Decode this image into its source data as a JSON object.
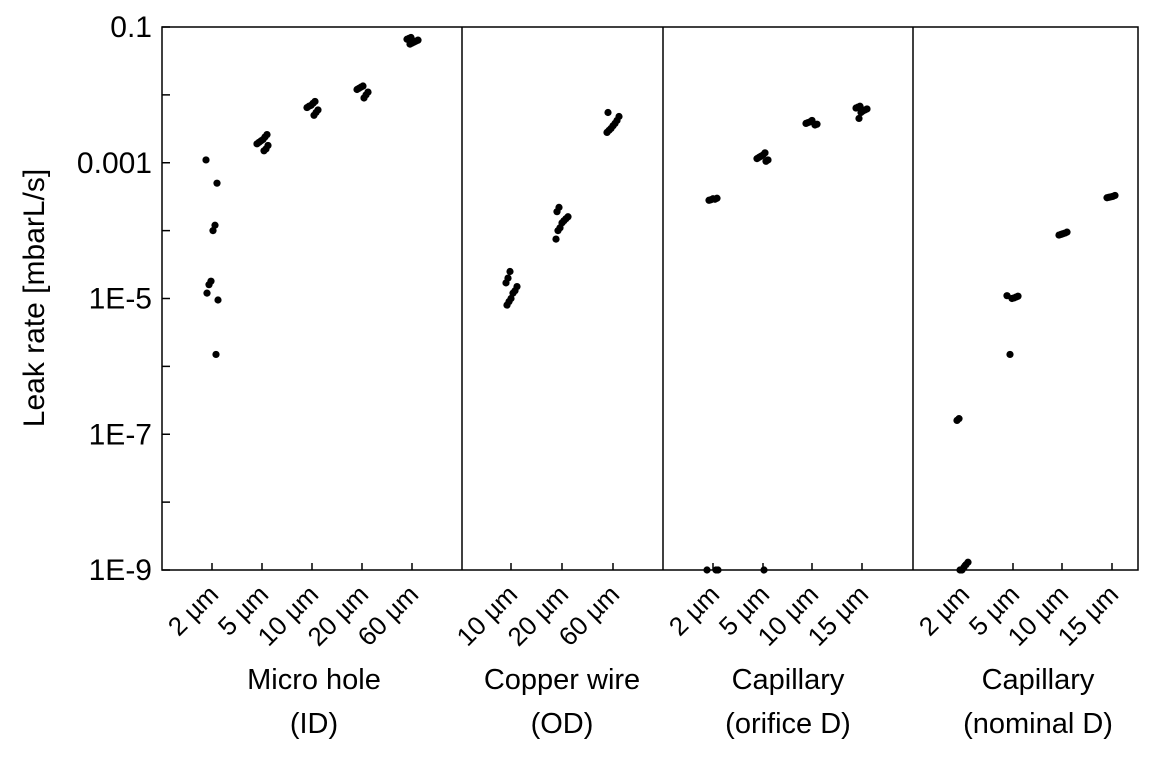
{
  "chart_data": {
    "type": "scatter",
    "title": "",
    "ylabel": "Leak rate [mbarL/s]",
    "yscale": "log",
    "ylim": [
      1e-09,
      0.1
    ],
    "yticks": [
      {
        "value": 1e-09,
        "label": "1E-9"
      },
      {
        "value": 1e-07,
        "label": "1E-7"
      },
      {
        "value": 1e-05,
        "label": "1E-5"
      },
      {
        "value": 0.001,
        "label": "0.001"
      },
      {
        "value": 0.1,
        "label": "0.1"
      }
    ],
    "grid": false,
    "legend": "none",
    "marker_color": "#000000",
    "groups": [
      {
        "label_line1": "Micro hole",
        "label_line2": "(ID)",
        "categories": [
          {
            "label": "2 µm",
            "values": [
              0.0011,
              0.0005,
              0.00012,
              0.0001,
              1.8e-05,
              1.6e-05,
              1.2e-05,
              9.5e-06,
              1.5e-06
            ]
          },
          {
            "label": "5 µm",
            "values": [
              0.0026,
              0.0024,
              0.0022,
              0.0021,
              0.002,
              0.0019,
              0.0018,
              0.0016,
              0.0015
            ]
          },
          {
            "label": "10 µm",
            "values": [
              0.008,
              0.0075,
              0.007,
              0.0068,
              0.0065,
              0.006,
              0.0055,
              0.005
            ]
          },
          {
            "label": "20 µm",
            "values": [
              0.0135,
              0.013,
              0.0125,
              0.012,
              0.011,
              0.01,
              0.009
            ]
          },
          {
            "label": "60 µm",
            "values": [
              0.07,
              0.068,
              0.066,
              0.064,
              0.062,
              0.06,
              0.058,
              0.056
            ]
          }
        ]
      },
      {
        "label_line1": "Copper wire",
        "label_line2": "(OD)",
        "categories": [
          {
            "label": "10 µm",
            "values": [
              2.5e-05,
              2e-05,
              1.7e-05,
              1.5e-05,
              1.3e-05,
              1.2e-05,
              1e-05,
              9e-06,
              8e-06
            ]
          },
          {
            "label": "20 µm",
            "values": [
              0.00022,
              0.00019,
              0.00016,
              0.00015,
              0.00014,
              0.00013,
              0.00011,
              0.0001,
              7.5e-05
            ]
          },
          {
            "label": "60 µm",
            "values": [
              0.0055,
              0.0048,
              0.0042,
              0.0038,
              0.0035,
              0.0032,
              0.003,
              0.0028
            ]
          }
        ]
      },
      {
        "label_line1": "Capillary",
        "label_line2": "(orifice D)",
        "categories": [
          {
            "label": "2 µm",
            "values": [
              0.0003,
              0.00029,
              0.000295,
              0.000285,
              0.00028,
              1e-09,
              1e-09,
              1e-09
            ]
          },
          {
            "label": "5 µm",
            "values": [
              0.0014,
              0.0013,
              0.00125,
              0.0012,
              0.00115,
              0.0011,
              0.00105,
              1e-09
            ]
          },
          {
            "label": "10 µm",
            "values": [
              0.0042,
              0.004,
              0.0039,
              0.0038,
              0.0037,
              0.0036
            ]
          },
          {
            "label": "15 µm",
            "values": [
              0.0068,
              0.0066,
              0.0064,
              0.0062,
              0.006,
              0.0058,
              0.0055,
              0.0045
            ]
          }
        ]
      },
      {
        "label_line1": "Capillary",
        "label_line2": "(nominal D)",
        "categories": [
          {
            "label": "2 µm",
            "values": [
              1.7e-07,
              1.6e-07,
              1.3e-09,
              1.2e-09,
              1.1e-09,
              1e-09,
              1e-09
            ]
          },
          {
            "label": "5 µm",
            "values": [
              1.1e-05,
              1.08e-05,
              1.05e-05,
              1.02e-05,
              1e-05,
              1.5e-06
            ]
          },
          {
            "label": "10 µm",
            "values": [
              9.5e-05,
              9.2e-05,
              9e-05,
              8.8e-05,
              8.6e-05
            ]
          },
          {
            "label": "15 µm",
            "values": [
              0.00033,
              0.00032,
              0.000315,
              0.00031,
              0.000305
            ]
          }
        ]
      }
    ]
  }
}
